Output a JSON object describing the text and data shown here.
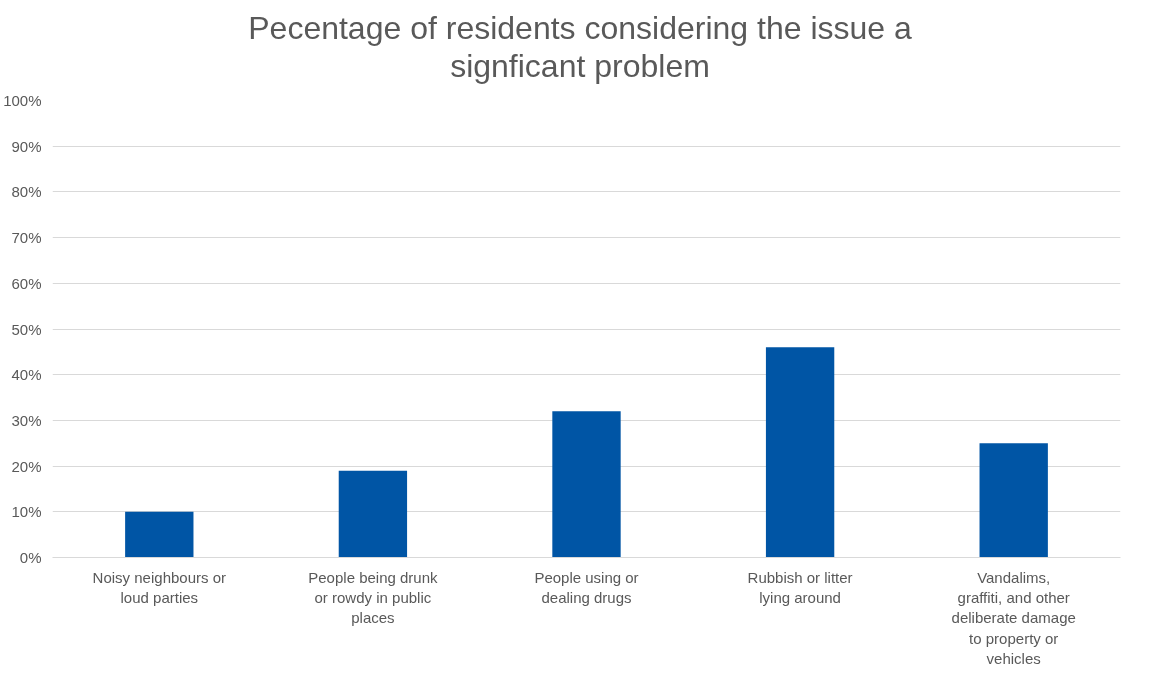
{
  "chart_data": {
    "type": "bar",
    "title": "Pecentage of residents considering the issue a signficant problem",
    "categories": [
      "Noisy neighbours or loud parties",
      "People being drunk or rowdy in public places",
      "People using or dealing drugs",
      "Rubbish or litter lying around",
      "Vandalims, graffiti, and other deliberate damage to property or vehicles"
    ],
    "values": [
      10,
      19,
      32,
      46,
      25
    ],
    "color": "#0055a5",
    "ylim": [
      0,
      100
    ],
    "yticks": [
      {
        "value": 0,
        "label": "0%"
      },
      {
        "value": 10,
        "label": "10%"
      },
      {
        "value": 20,
        "label": "20%"
      },
      {
        "value": 30,
        "label": "30%"
      },
      {
        "value": 40,
        "label": "40%"
      },
      {
        "value": 50,
        "label": "50%"
      },
      {
        "value": 60,
        "label": "60%"
      },
      {
        "value": 70,
        "label": "70%"
      },
      {
        "value": 80,
        "label": "80%"
      },
      {
        "value": 90,
        "label": "90%"
      },
      {
        "value": 100,
        "label": "100%"
      }
    ],
    "grid": "y"
  }
}
